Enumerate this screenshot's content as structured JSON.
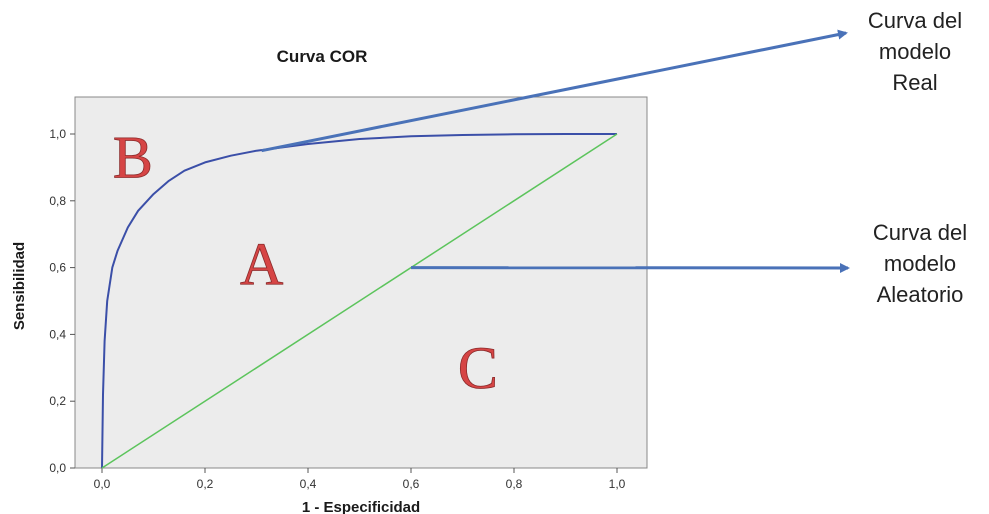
{
  "chart_data": {
    "type": "line",
    "title": "Curva COR",
    "xlabel": "1 - Especificidad",
    "ylabel": "Sensibilidad",
    "xlim": [
      0,
      1
    ],
    "ylim": [
      0,
      1
    ],
    "x_ticks": [
      "0,0",
      "0,2",
      "0,4",
      "0,6",
      "0,8",
      "1,0"
    ],
    "y_ticks": [
      "0,0",
      "0,2",
      "0,4",
      "0,6",
      "0,8",
      "1,0"
    ],
    "grid": false,
    "series": [
      {
        "color": "#3b4fa8",
        "x": [
          0,
          0.002,
          0.005,
          0.01,
          0.02,
          0.03,
          0.05,
          0.07,
          0.1,
          0.13,
          0.16,
          0.2,
          0.25,
          0.3,
          0.4,
          0.5,
          0.6,
          0.7,
          0.8,
          0.9,
          1.0
        ],
        "y": [
          0,
          0.22,
          0.38,
          0.5,
          0.6,
          0.65,
          0.72,
          0.77,
          0.82,
          0.86,
          0.89,
          0.915,
          0.935,
          0.95,
          0.97,
          0.985,
          0.993,
          0.997,
          0.999,
          1.0,
          1.0
        ]
      },
      {
        "color": "#5cc45c",
        "x": [
          0,
          1
        ],
        "y": [
          0,
          1
        ]
      }
    ],
    "region_labels": [
      {
        "text": "B",
        "x": 0.06,
        "y": 0.93
      },
      {
        "text": "A",
        "x": 0.31,
        "y": 0.61
      },
      {
        "text": "C",
        "x": 0.73,
        "y": 0.3
      }
    ],
    "annotations": [
      {
        "lines": [
          "Curva del",
          "modelo",
          "Real"
        ],
        "points_to": {
          "x": 0.31,
          "y": 0.95
        },
        "color": "#4a72b8"
      },
      {
        "lines": [
          "Curva del",
          "modelo",
          "Aleatorio"
        ],
        "points_to": {
          "x": 0.6,
          "y": 0.6
        },
        "color": "#4a72b8"
      }
    ],
    "colors": {
      "plot_background": "#ececec",
      "plot_border": "#888888",
      "region_letter": "#d64545"
    }
  }
}
